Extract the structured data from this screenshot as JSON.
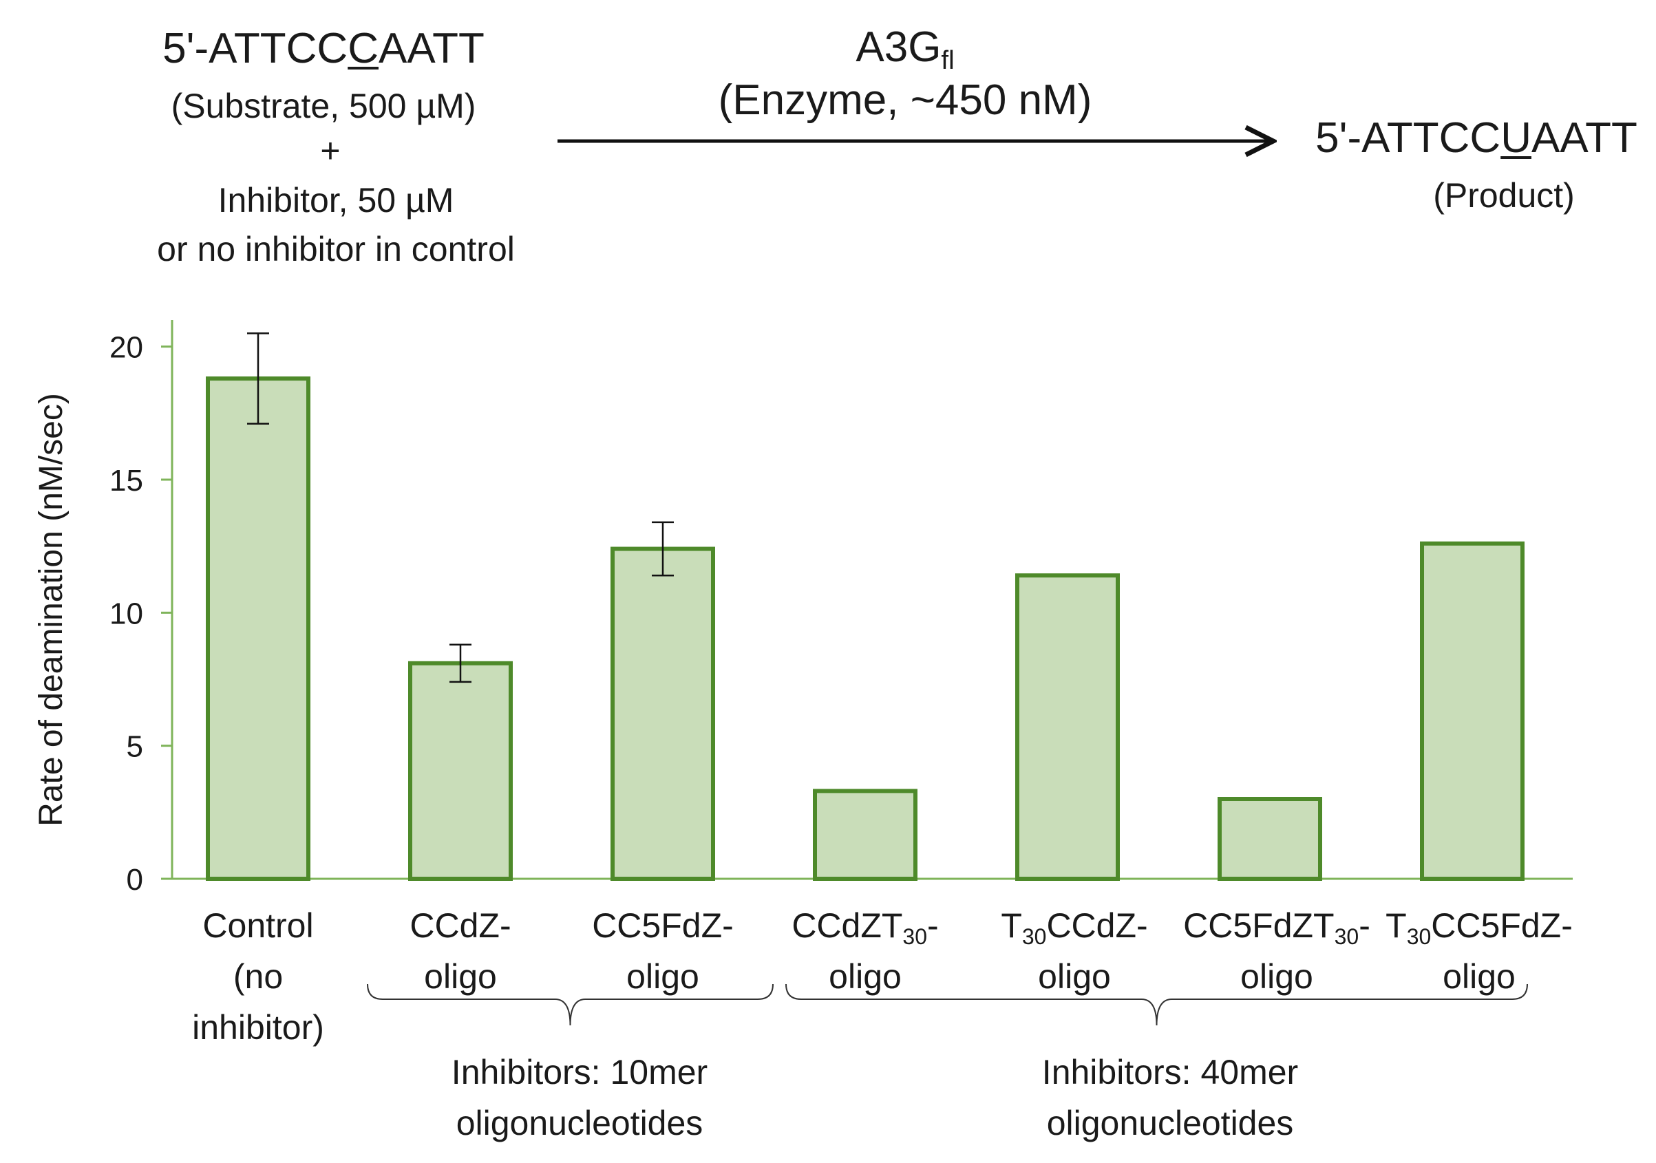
{
  "reaction": {
    "substrate_prefix": "5'-ATTCC",
    "substrate_mark": "C",
    "substrate_suffix": "AATT",
    "substrate_label": "(Substrate, 500 µM)",
    "plus": "+",
    "inhibitor_line1": "Inhibitor, 50 µM",
    "inhibitor_line2": "or no inhibitor in control",
    "enzyme_name": "A3G",
    "enzyme_subscript": "fl",
    "enzyme_label": "(Enzyme, ~450 nM)",
    "product_prefix": "5'-ATTCC",
    "product_mark": "U",
    "product_suffix": "AATT",
    "product_label": "(Product)"
  },
  "chart_data": {
    "type": "bar",
    "ylabel": "Rate of deamination (nM/sec)",
    "ylim": [
      0,
      21
    ],
    "yticks": [
      "0",
      "5",
      "10",
      "15",
      "20"
    ],
    "grid": false,
    "categories": [
      {
        "lines": [
          "Control",
          "(no",
          "inhibitor)"
        ]
      },
      {
        "lines": [
          "CCdZ-",
          "oligo"
        ]
      },
      {
        "lines": [
          "CC5FdZ-",
          "oligo"
        ]
      },
      {
        "pre": "CCdZT",
        "sub": "30",
        "post": "-",
        "line2": "oligo"
      },
      {
        "pre": "T",
        "sub": "30",
        "post": "CCdZ-",
        "line2": "oligo"
      },
      {
        "pre": "CC5FdZT",
        "sub": "30",
        "post": "-",
        "line2": "oligo"
      },
      {
        "pre": "T",
        "sub": "30",
        "post": "CC5FdZ-",
        "line2": "oligo"
      }
    ],
    "values": [
      18.8,
      8.1,
      12.4,
      3.3,
      11.4,
      3.0,
      12.6
    ],
    "error": [
      1.7,
      0.7,
      1.0,
      null,
      null,
      null,
      null
    ],
    "bar_fill": "#c9ddb9",
    "bar_stroke": "#4e8a2a",
    "axis_color": "#7fb45a",
    "groups": [
      {
        "lines": [
          "Inhibitors: 10mer",
          "oligonucleotides"
        ]
      },
      {
        "lines": [
          "Inhibitors: 40mer",
          "oligonucleotides"
        ]
      }
    ]
  }
}
